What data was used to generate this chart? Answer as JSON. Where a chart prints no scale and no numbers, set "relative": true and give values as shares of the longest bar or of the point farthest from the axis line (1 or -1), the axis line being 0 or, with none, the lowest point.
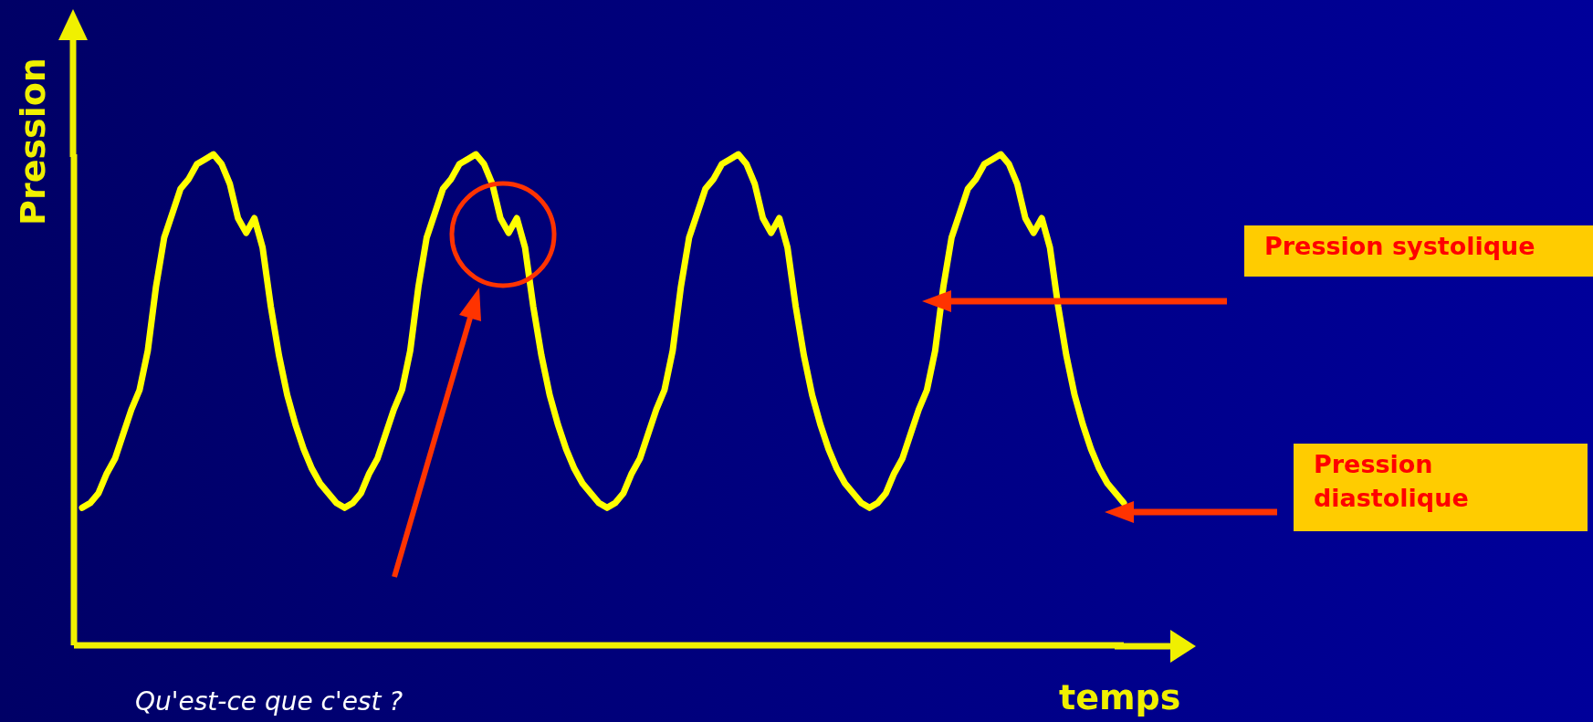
{
  "chart_data": {
    "type": "line",
    "relative": true,
    "xlabel": "temps",
    "ylabel": "Pression",
    "categories": [
      null,
      null,
      null,
      null,
      null,
      null,
      null,
      null,
      null,
      null,
      null,
      null,
      null,
      null,
      null,
      null,
      null,
      null,
      null,
      null,
      null,
      null,
      null,
      null,
      null,
      null,
      null,
      null,
      null,
      null,
      null,
      null,
      null,
      null,
      null,
      null,
      null,
      null,
      null,
      null,
      null,
      null,
      null,
      null,
      null,
      null,
      null,
      null,
      null,
      null,
      null,
      null,
      null,
      null,
      null,
      null,
      null,
      null,
      null,
      null,
      null,
      null,
      null,
      null,
      null,
      null,
      null,
      null,
      null,
      null,
      null,
      null,
      null,
      null,
      null,
      null,
      null,
      null,
      null,
      null,
      null,
      null,
      null,
      null,
      null,
      null,
      null,
      null,
      null,
      null,
      null,
      null,
      null,
      null,
      null,
      null,
      null,
      null,
      null,
      null,
      null,
      null,
      null,
      null,
      null,
      null,
      null,
      null,
      null,
      null,
      null,
      null,
      null,
      null,
      null,
      null,
      null,
      null,
      null,
      null,
      null,
      null,
      null,
      null,
      null,
      null,
      null,
      null
    ],
    "series": [
      {
        "color": "#ffff00",
        "values": [
          0.28,
          0.29,
          0.31,
          0.35,
          0.38,
          0.43,
          0.48,
          0.52,
          0.6,
          0.73,
          0.83,
          0.88,
          0.93,
          0.95,
          0.98,
          0.99,
          1.0,
          0.98,
          0.94,
          0.87,
          0.84,
          0.87,
          0.81,
          0.69,
          0.59,
          0.51,
          0.45,
          0.4,
          0.36,
          0.33,
          0.31,
          0.29,
          0.28,
          0.29,
          0.31,
          0.35,
          0.38,
          0.43,
          0.48,
          0.52,
          0.6,
          0.73,
          0.83,
          0.88,
          0.93,
          0.95,
          0.98,
          0.99,
          1.0,
          0.98,
          0.94,
          0.87,
          0.84,
          0.87,
          0.81,
          0.69,
          0.59,
          0.51,
          0.45,
          0.4,
          0.36,
          0.33,
          0.31,
          0.29,
          0.28,
          0.29,
          0.31,
          0.35,
          0.38,
          0.43,
          0.48,
          0.52,
          0.6,
          0.73,
          0.83,
          0.88,
          0.93,
          0.95,
          0.98,
          0.99,
          1.0,
          0.98,
          0.94,
          0.87,
          0.84,
          0.87,
          0.81,
          0.69,
          0.59,
          0.51,
          0.45,
          0.4,
          0.36,
          0.33,
          0.31,
          0.29,
          0.28,
          0.29,
          0.31,
          0.35,
          0.38,
          0.43,
          0.48,
          0.52,
          0.6,
          0.73,
          0.83,
          0.88,
          0.93,
          0.95,
          0.98,
          0.99,
          1.0,
          0.98,
          0.94,
          0.87,
          0.84,
          0.87,
          0.81,
          0.69,
          0.59,
          0.51,
          0.45,
          0.4,
          0.36,
          0.33,
          0.31,
          0.29
        ]
      }
    ],
    "marker": "none",
    "annotations": [
      "Pression systolique",
      "Pression diastolique",
      "Qu'est-ce que c'est ?"
    ]
  }
}
